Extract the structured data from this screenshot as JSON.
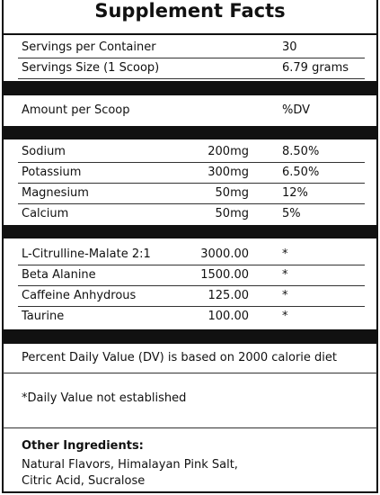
{
  "title": "Supplement Facts",
  "servings": [
    [
      "Servings per Container",
      "30"
    ],
    [
      "Servings Size (1 Scoop)",
      "6.79 grams"
    ]
  ],
  "amount_header": [
    "Amount per Scoop",
    "%DV"
  ],
  "minerals": [
    [
      "Sodium",
      "200mg",
      "8.50%"
    ],
    [
      "Potassium",
      "300mg",
      "6.50%"
    ],
    [
      "Magnesium",
      "50mg",
      "12%"
    ],
    [
      "Calcium",
      "50mg",
      "5%"
    ]
  ],
  "ingredients": [
    [
      "L-Citrulline-Malate 2:1",
      "3000.00",
      "*"
    ],
    [
      "Beta Alanine",
      "1500.00",
      "*"
    ],
    [
      "Caffeine Anhydrous",
      "125.00",
      "*"
    ],
    [
      "Taurine",
      "100.00",
      "*"
    ]
  ],
  "dv_note": "Percent Daily Value (DV) is based on 2000 calorie diet",
  "not_established": "*Daily Value not established",
  "other_ingredients": {
    "heading": "Other Ingredients:",
    "lines": [
      "Natural Flavors, Himalayan Pink Salt,",
      "Citric Acid, Sucralose"
    ]
  }
}
